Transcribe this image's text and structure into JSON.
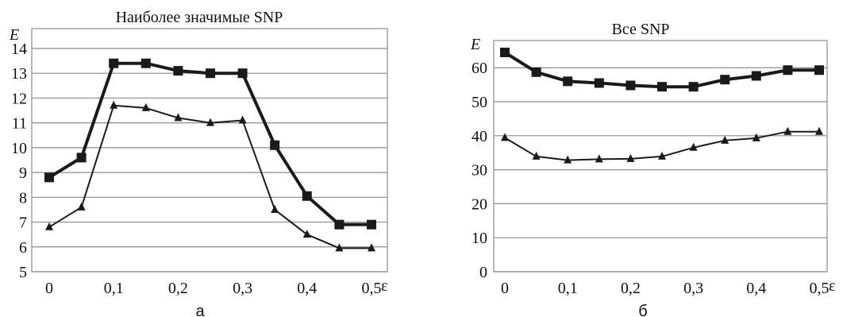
{
  "chart_data": [
    {
      "type": "line",
      "title": "Наиболее значимые SNP",
      "ylabel": "E",
      "xlabel": "ε",
      "caption": "а",
      "x": [
        0,
        0.05,
        0.1,
        0.15,
        0.2,
        0.25,
        0.3,
        0.35,
        0.4,
        0.45,
        0.5
      ],
      "xticks": [
        0,
        0.1,
        0.2,
        0.3,
        0.4,
        0.5
      ],
      "xtick_labels": [
        "0",
        "0,1",
        "0,2",
        "0,3",
        "0,4",
        "0,5"
      ],
      "yticks": [
        5,
        6,
        7,
        8,
        9,
        10,
        11,
        12,
        13,
        14
      ],
      "ytick_labels": [
        "5",
        "6",
        "7",
        "8",
        "9",
        "10",
        "11",
        "12",
        "13",
        "14"
      ],
      "ylim": [
        5,
        14.8
      ],
      "grid": true,
      "series": [
        {
          "marker": "square",
          "values": [
            8.8,
            9.6,
            13.4,
            13.4,
            13.1,
            13.0,
            13.0,
            10.1,
            8.05,
            6.9,
            6.9
          ]
        },
        {
          "marker": "triangle",
          "values": [
            6.8,
            7.6,
            11.7,
            11.6,
            11.2,
            11.0,
            11.1,
            7.5,
            6.5,
            5.95,
            5.95
          ]
        }
      ]
    },
    {
      "type": "line",
      "title": "Все SNP",
      "ylabel": "E",
      "xlabel": "ε",
      "caption": "б",
      "x": [
        0,
        0.05,
        0.1,
        0.15,
        0.2,
        0.25,
        0.3,
        0.35,
        0.4,
        0.45,
        0.5
      ],
      "xticks": [
        0,
        0.1,
        0.2,
        0.3,
        0.4,
        0.5
      ],
      "xtick_labels": [
        "0",
        "0,1",
        "0,2",
        "0,3",
        "0,4",
        "0,5"
      ],
      "yticks": [
        0,
        10,
        20,
        30,
        40,
        50,
        60
      ],
      "ytick_labels": [
        "0",
        "10",
        "20",
        "30",
        "40",
        "50",
        "60"
      ],
      "ylim": [
        0,
        68
      ],
      "grid": true,
      "series": [
        {
          "marker": "square",
          "values": [
            64.5,
            58.7,
            56.0,
            55.5,
            54.8,
            54.4,
            54.4,
            56.5,
            57.6,
            59.3,
            59.3
          ]
        },
        {
          "marker": "triangle",
          "values": [
            39.4,
            33.9,
            32.8,
            33.1,
            33.2,
            33.9,
            36.5,
            38.6,
            39.3,
            41.2,
            41.2
          ]
        }
      ]
    }
  ]
}
